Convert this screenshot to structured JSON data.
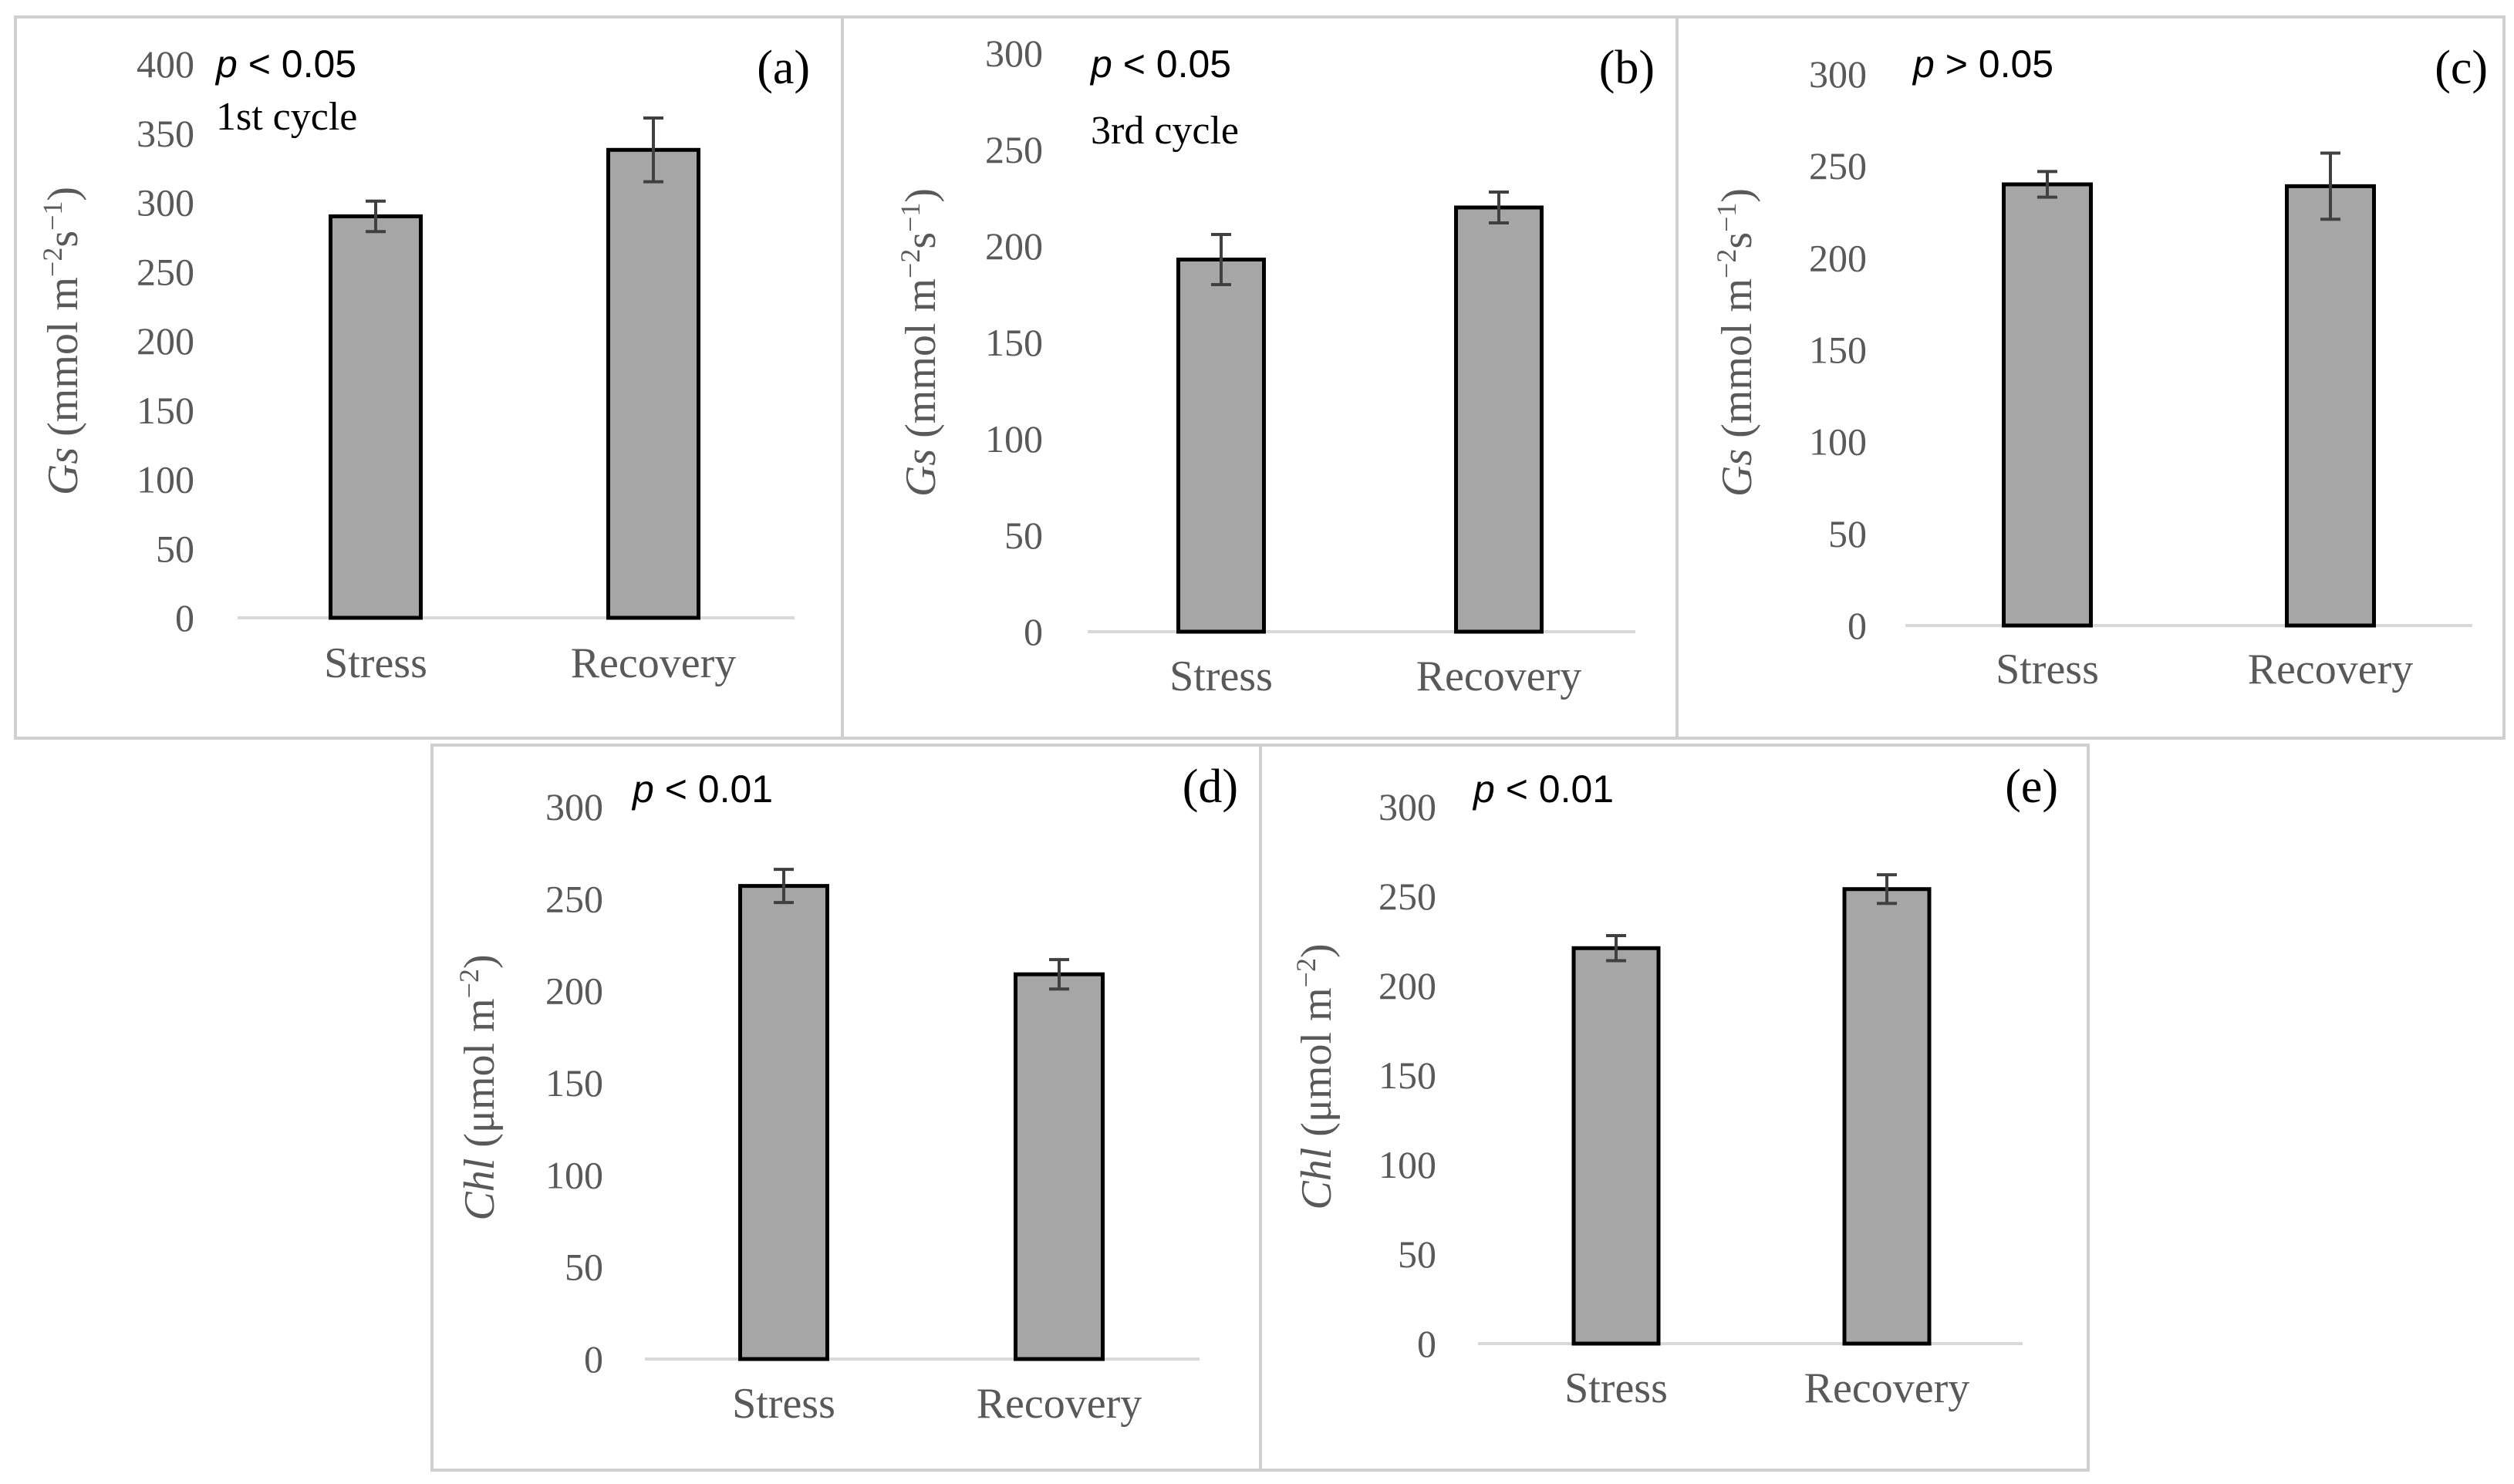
{
  "figure": {
    "panels": [
      "(a)",
      "(b)",
      "(c)",
      "(d)",
      "(e)"
    ]
  },
  "colors": {
    "bar": "#a6a6a6",
    "bar_edge": "#000000",
    "axis": "#d9d9d9",
    "tick_text": "#595959",
    "error_bar": "#404040"
  },
  "chart_data": [
    {
      "type": "bar",
      "panel_label": "(a)",
      "p_symbol": "p",
      "p_rest": " < 0.05",
      "note": "1st cycle",
      "ylabel_var": "Gs",
      "ylabel_unit": " (mmol m",
      "ylabel_sup1": "−2",
      "ylabel_mid": "s",
      "ylabel_sup2": "−1",
      "ylabel_end": ")",
      "categories": [
        "Stress",
        "Recovery"
      ],
      "values": [
        290,
        338
      ],
      "errors": [
        11,
        23
      ],
      "ylim": [
        0,
        400
      ],
      "yticks": [
        0,
        50,
        100,
        150,
        200,
        250,
        300,
        350,
        400
      ]
    },
    {
      "type": "bar",
      "panel_label": "(b)",
      "p_symbol": "p",
      "p_rest": " < 0.05",
      "note": "3rd cycle",
      "ylabel_var": "Gs",
      "ylabel_unit": " (mmol m",
      "ylabel_sup1": "−2",
      "ylabel_mid": "s",
      "ylabel_sup2": "−1",
      "ylabel_end": ")",
      "categories": [
        "Stress",
        "Recovery"
      ],
      "values": [
        193,
        220
      ],
      "errors": [
        13,
        8
      ],
      "ylim": [
        0,
        300
      ],
      "yticks": [
        0,
        50,
        100,
        150,
        200,
        250,
        300
      ]
    },
    {
      "type": "bar",
      "panel_label": "(c)",
      "p_symbol": "p",
      "p_rest": " > 0.05",
      "note": "",
      "ylabel_var": "Gs",
      "ylabel_unit": " (mmol m",
      "ylabel_sup1": "−2",
      "ylabel_mid": "s",
      "ylabel_sup2": "−1",
      "ylabel_end": ")",
      "categories": [
        "Stress",
        "Recovery"
      ],
      "values": [
        240,
        239
      ],
      "errors": [
        7,
        18
      ],
      "ylim": [
        0,
        300
      ],
      "yticks": [
        0,
        50,
        100,
        150,
        200,
        250,
        300
      ]
    },
    {
      "type": "bar",
      "panel_label": "(d)",
      "p_symbol": "p",
      "p_rest": " < 0.01",
      "note": "",
      "ylabel_var": "Chl",
      "ylabel_unit": " (μmol m",
      "ylabel_sup1": "−2",
      "ylabel_mid": "",
      "ylabel_sup2": "",
      "ylabel_end": ")",
      "categories": [
        "Stress",
        "Recovery"
      ],
      "values": [
        257,
        209
      ],
      "errors": [
        9,
        8
      ],
      "ylim": [
        0,
        300
      ],
      "yticks": [
        0,
        50,
        100,
        150,
        200,
        250,
        300
      ]
    },
    {
      "type": "bar",
      "panel_label": "(e)",
      "p_symbol": "p",
      "p_rest": " < 0.01",
      "note": "",
      "ylabel_var": "Chl",
      "ylabel_unit": " (μmol m",
      "ylabel_sup1": "−2",
      "ylabel_mid": "",
      "ylabel_sup2": "",
      "ylabel_end": ")",
      "categories": [
        "Stress",
        "Recovery"
      ],
      "values": [
        221,
        254
      ],
      "errors": [
        7,
        8
      ],
      "ylim": [
        0,
        300
      ],
      "yticks": [
        0,
        50,
        100,
        150,
        200,
        250,
        300
      ]
    }
  ]
}
